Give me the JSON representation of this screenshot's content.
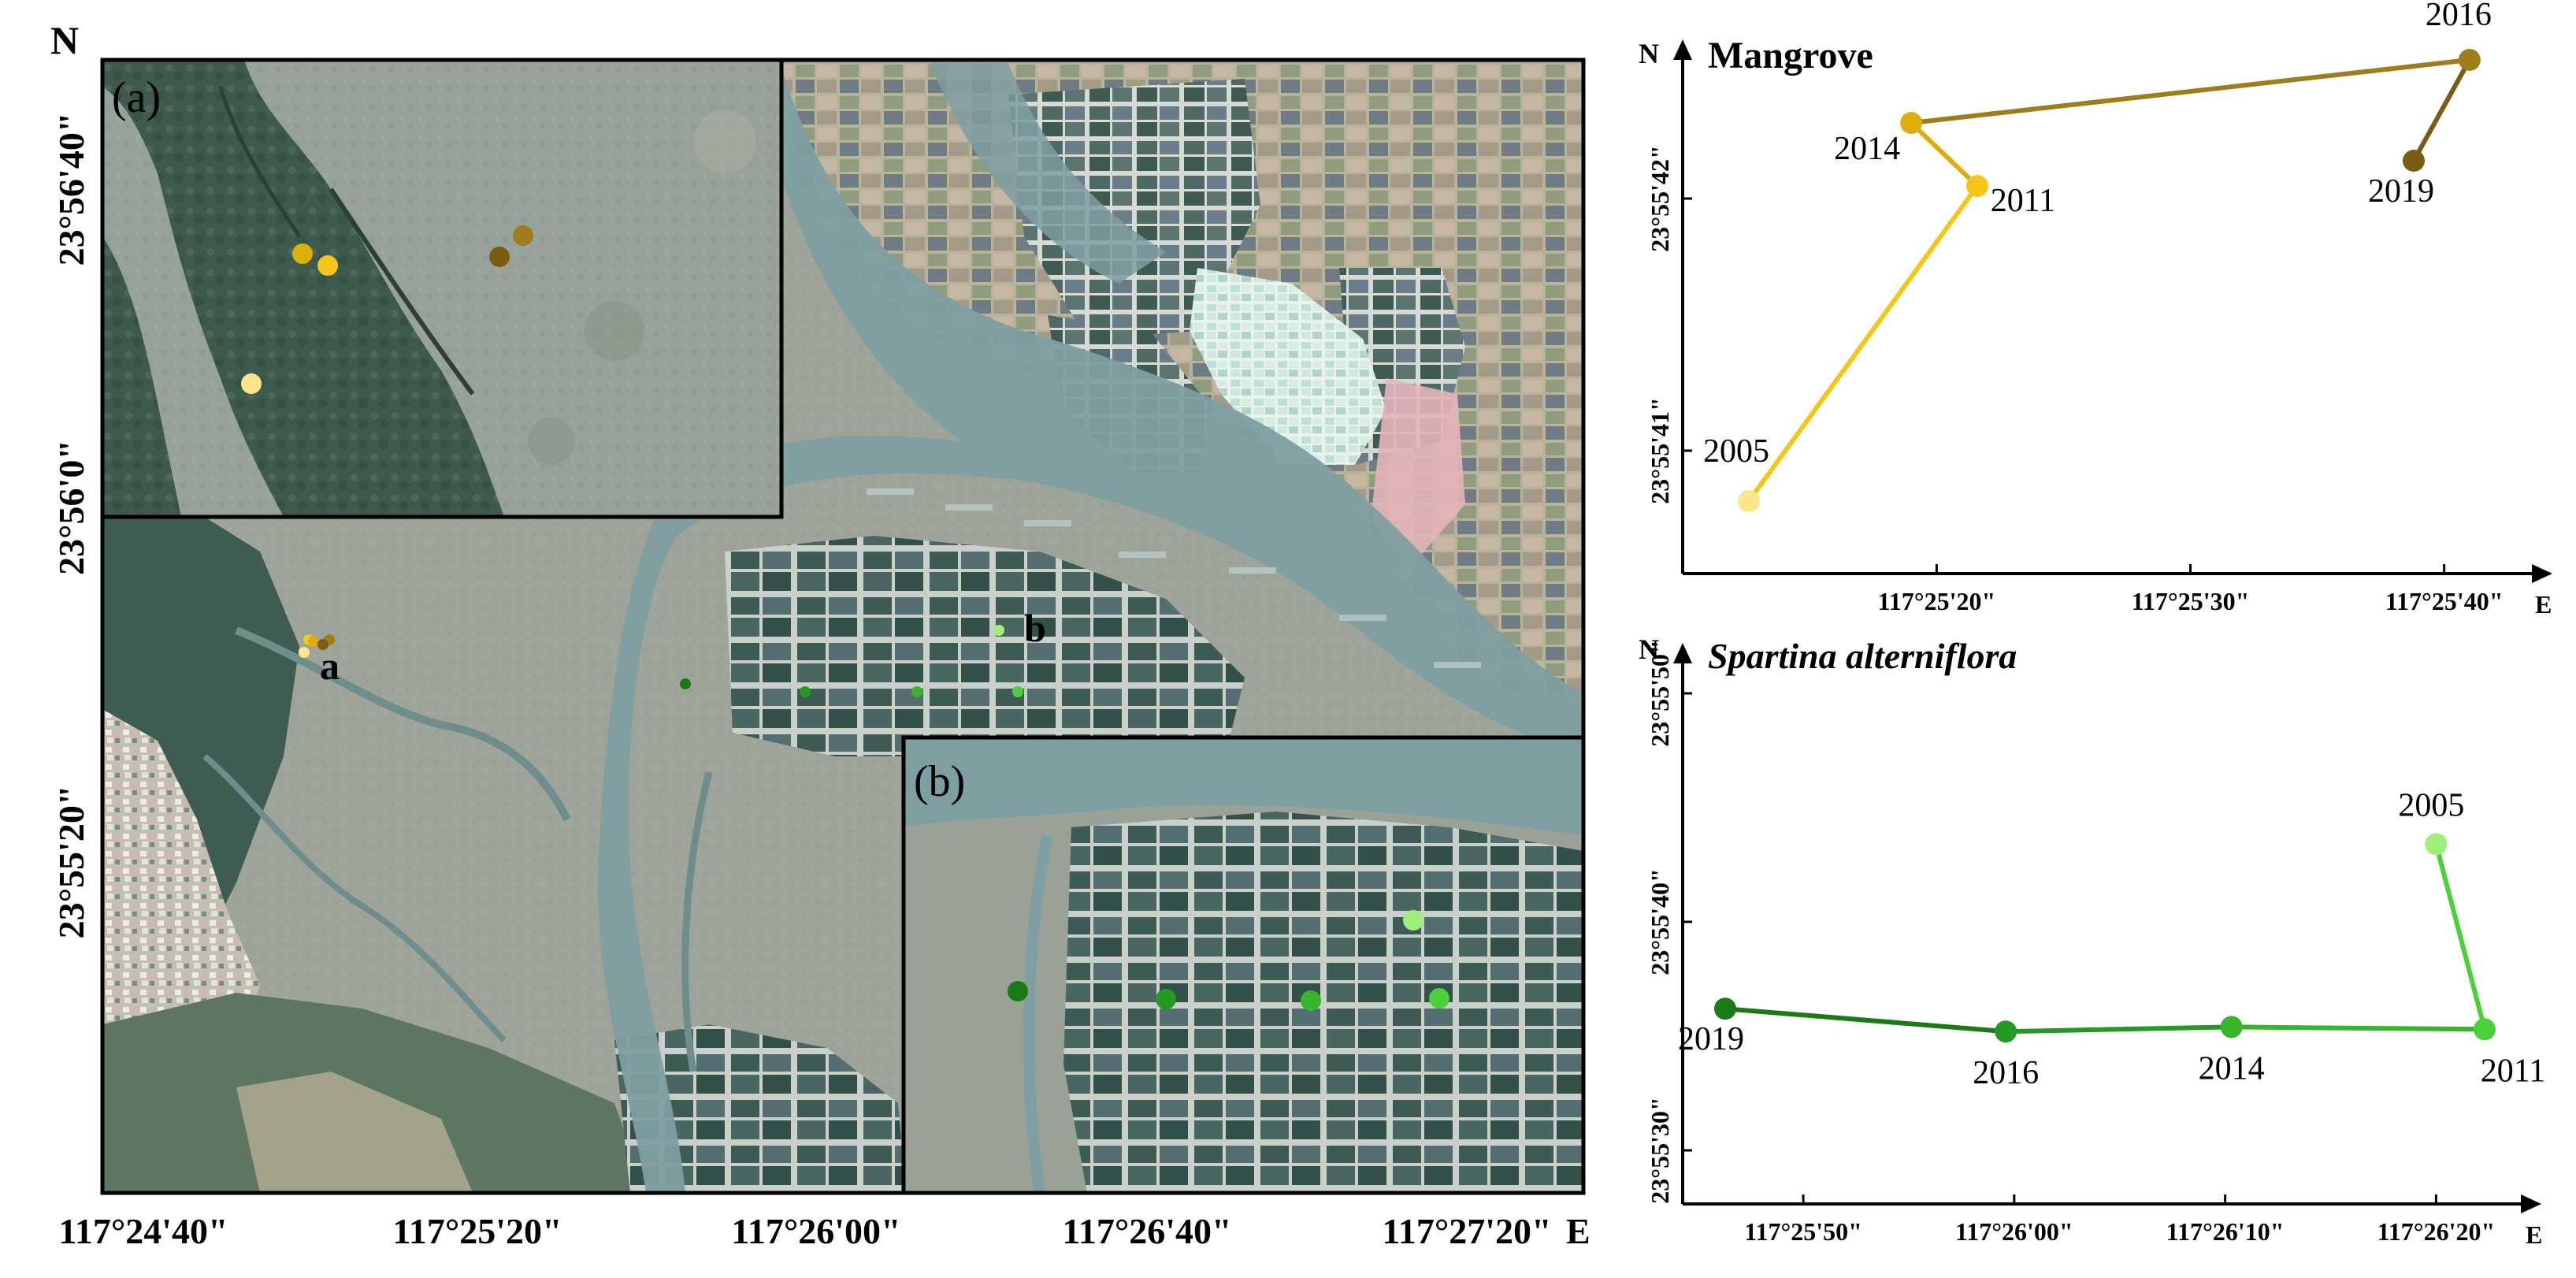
{
  "map": {
    "north_label": "N",
    "east_label": "E",
    "lat_ticks": [
      "23°56'40\"",
      "23°56'0\"",
      "23°55'20\""
    ],
    "lon_ticks": [
      "117°24'40\"",
      "117°25'20\"",
      "117°26'00\"",
      "117°26'40\"",
      "117°27'20\""
    ],
    "inset_a_label": "(a)",
    "inset_b_label": "(b)",
    "site_a_label": "a",
    "site_b_label": "b"
  },
  "mangrove_colors": {
    "2005": "#fde68a",
    "2011": "#f5c518",
    "2014": "#dcae0c",
    "2016": "#a07d1c",
    "2019": "#7a5d12"
  },
  "spartina_colors": {
    "2005": "#9ef07a",
    "2011": "#4ad13a",
    "2014": "#38b52a",
    "2016": "#259a22",
    "2019": "#1a7a18"
  },
  "chart_data": [
    {
      "type": "line",
      "title": "Mangrove",
      "north_label": "N",
      "east_label": "E",
      "x_ticks": [
        "117°25'20\"",
        "117°25'30\"",
        "117°25'40\""
      ],
      "y_ticks": [
        "23°55'42\"",
        "23°55'41\""
      ],
      "points": [
        {
          "year": "2005",
          "lon_sec": 12.6,
          "lat_sec": 40.8
        },
        {
          "year": "2011",
          "lon_sec": 21.6,
          "lat_sec": 42.05
        },
        {
          "year": "2014",
          "lon_sec": 19.0,
          "lat_sec": 42.3
        },
        {
          "year": "2016",
          "lon_sec": 41.0,
          "lat_sec": 42.55
        },
        {
          "year": "2019",
          "lon_sec": 38.8,
          "lat_sec": 42.15
        }
      ]
    },
    {
      "type": "line",
      "title": "Spartina alterniflora",
      "north_label": "N",
      "east_label": "E",
      "x_ticks": [
        "117°25'50\"",
        "117°26'00\"",
        "117°26'10\"",
        "117°26'20\""
      ],
      "y_ticks": [
        "23°55'50\"",
        "23°55'40\"",
        "23°55'30\""
      ],
      "points": [
        {
          "year": "2005",
          "lon_sec": 80.0,
          "lat_sec": 43.4
        },
        {
          "year": "2011",
          "lon_sec": 82.3,
          "lat_sec": 35.3
        },
        {
          "year": "2014",
          "lon_sec": 70.3,
          "lat_sec": 35.4
        },
        {
          "year": "2016",
          "lon_sec": 59.6,
          "lat_sec": 35.2
        },
        {
          "year": "2019",
          "lon_sec": 46.3,
          "lat_sec": 36.2
        }
      ]
    }
  ]
}
